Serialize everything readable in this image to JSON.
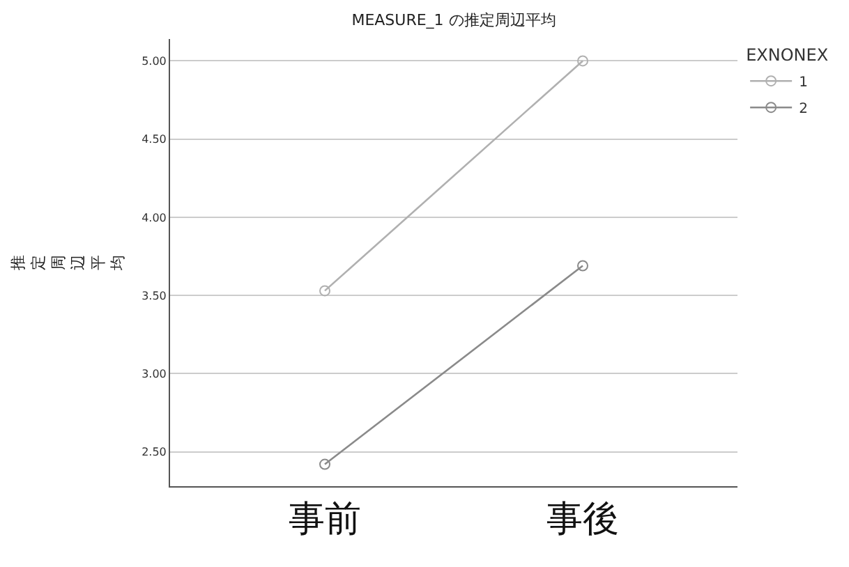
{
  "chart_data": {
    "type": "line",
    "title": "MEASURE_1 の推定周辺平均",
    "ylabel": "推定周辺平均",
    "legend_title": "EXNONEX",
    "categories": [
      "事前",
      "事後"
    ],
    "series": [
      {
        "name": "1",
        "color": "#b0b0b0",
        "values": [
          3.53,
          5.0
        ]
      },
      {
        "name": "2",
        "color": "#8a8a8a",
        "values": [
          2.42,
          3.69
        ]
      }
    ],
    "ylim": [
      2.28,
      5.14
    ],
    "yticks": [
      {
        "value": 2.5,
        "label": "2.50"
      },
      {
        "value": 3.0,
        "label": "3.00"
      },
      {
        "value": 3.5,
        "label": "3.50"
      },
      {
        "value": 4.0,
        "label": "4.00"
      },
      {
        "value": 4.5,
        "label": "4.50"
      },
      {
        "value": 5.0,
        "label": "5.00"
      }
    ],
    "grid": "y",
    "legend": "top right",
    "marker": "circle",
    "line_style": "solid"
  }
}
